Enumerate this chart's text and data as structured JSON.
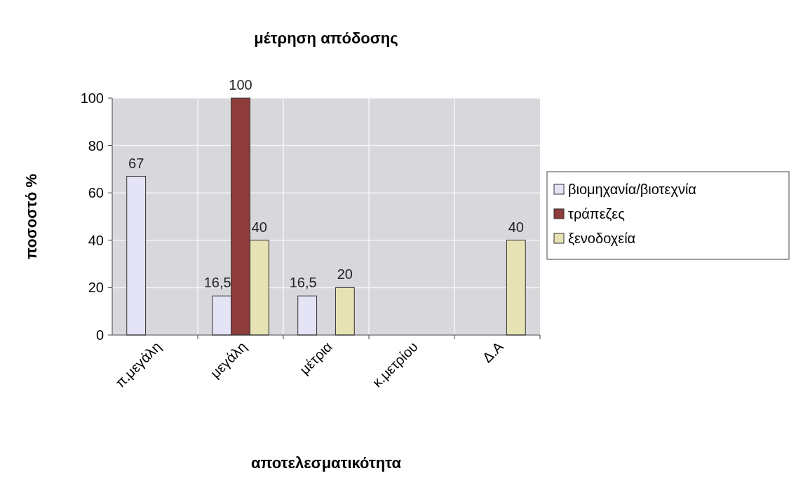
{
  "chart_data": {
    "type": "bar",
    "title": "μέτρηση απόδοσης",
    "xlabel": "αποτελεσματικότητα",
    "ylabel": "ποσοστό %",
    "categories": [
      "π.μεγάλη",
      "μεγάλη",
      "μέτρια",
      "κ.μετρίου",
      "Δ.Α"
    ],
    "series": [
      {
        "name": "βιομηχανία/βιοτεχνία",
        "color": "#e4e4f6",
        "values": [
          67,
          16.5,
          16.5,
          null,
          null
        ],
        "value_labels": [
          "67",
          "16,5",
          "16,5",
          null,
          null
        ]
      },
      {
        "name": "τράπεζες",
        "color": "#8e3c3c",
        "values": [
          null,
          100,
          null,
          null,
          null
        ],
        "value_labels": [
          null,
          "100",
          null,
          null,
          null
        ]
      },
      {
        "name": "ξενοδοχεία",
        "color": "#e6e2b4",
        "values": [
          null,
          40,
          20,
          null,
          40
        ],
        "value_labels": [
          null,
          "40",
          "20",
          null,
          "40"
        ]
      }
    ],
    "ylim": [
      0,
      100
    ],
    "yticks": [
      0,
      20,
      40,
      60,
      80,
      100
    ],
    "grid": true,
    "legend": "right"
  }
}
